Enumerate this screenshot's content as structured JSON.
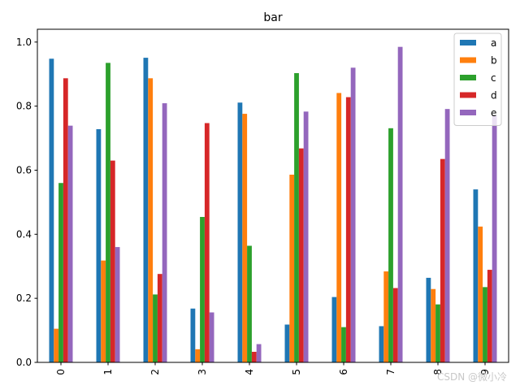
{
  "chart_data": {
    "type": "bar",
    "title": "bar",
    "xlabel": "",
    "ylabel": "",
    "categories": [
      "0",
      "1",
      "2",
      "3",
      "4",
      "5",
      "6",
      "7",
      "8",
      "9"
    ],
    "ylim": [
      0,
      1.04
    ],
    "yticks": [
      0.0,
      0.2,
      0.4,
      0.6,
      0.8,
      1.0
    ],
    "ytick_labels": [
      "0.0",
      "0.2",
      "0.4",
      "0.6",
      "0.8",
      "1.0"
    ],
    "legend_position": "top-right",
    "grid": false,
    "series": [
      {
        "name": "a",
        "color": "#1f77b4",
        "values": [
          0.948,
          0.728,
          0.951,
          0.168,
          0.811,
          0.118,
          0.204,
          0.113,
          0.264,
          0.54
        ]
      },
      {
        "name": "b",
        "color": "#ff7f0e",
        "values": [
          0.105,
          0.318,
          0.887,
          0.041,
          0.776,
          0.586,
          0.841,
          0.284,
          0.229,
          0.424
        ]
      },
      {
        "name": "c",
        "color": "#2ca02c",
        "values": [
          0.56,
          0.935,
          0.212,
          0.454,
          0.364,
          0.903,
          0.11,
          0.731,
          0.181,
          0.235
        ]
      },
      {
        "name": "d",
        "color": "#d62728",
        "values": [
          0.887,
          0.63,
          0.276,
          0.747,
          0.033,
          0.668,
          0.828,
          0.232,
          0.635,
          0.289
        ]
      },
      {
        "name": "e",
        "color": "#9467bd",
        "values": [
          0.739,
          0.36,
          0.809,
          0.156,
          0.057,
          0.783,
          0.92,
          0.985,
          0.791,
          0.77
        ]
      }
    ]
  },
  "watermark": "CSDN @微小冷"
}
